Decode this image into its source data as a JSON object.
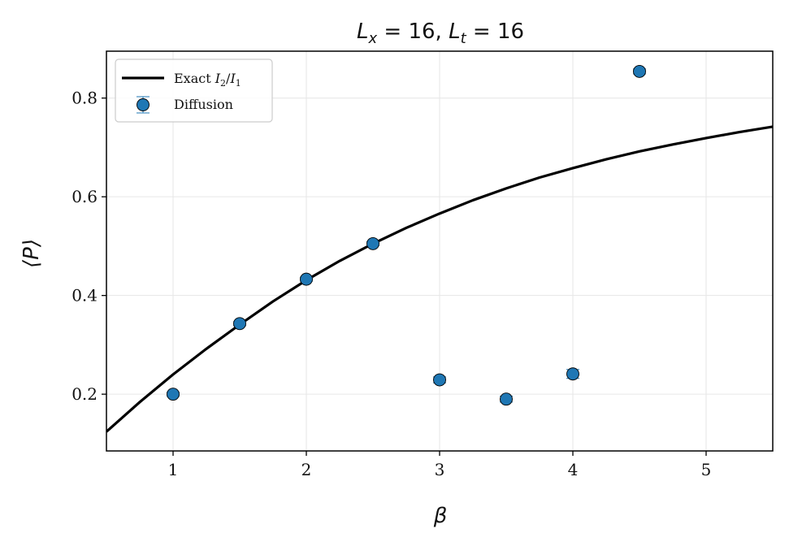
{
  "chart_data": {
    "type": "scatter",
    "title": "L_x = 16,  L_t = 16",
    "title_parts": {
      "lx_sym": "L",
      "lx_sub": "x",
      "lx_val": " = 16,  ",
      "lt_sym": "L",
      "lt_sub": "t",
      "lt_val": " = 16"
    },
    "xlabel": "β",
    "ylabel": "⟨P⟩",
    "xlim": [
      0.5,
      5.5
    ],
    "ylim": [
      0.085,
      0.895
    ],
    "xticks": [
      1,
      2,
      3,
      4,
      5
    ],
    "yticks": [
      0.2,
      0.4,
      0.6,
      0.8
    ],
    "xtick_labels": [
      "1",
      "2",
      "3",
      "4",
      "5"
    ],
    "ytick_labels": [
      "0.2",
      "0.4",
      "0.6",
      "0.8"
    ],
    "grid": true,
    "legend_position": "top-left",
    "legend": {
      "exact_label": "Exact I₂/I₁",
      "exact_parts": {
        "prefix": "Exact ",
        "i2": "I",
        "i2_sub": "2",
        "slash": "/",
        "i1": "I",
        "i1_sub": "1"
      },
      "diffusion_label": "Diffusion"
    },
    "series": [
      {
        "name": "Exact I₂/I₁",
        "kind": "line",
        "color": "#000000",
        "x": [
          0.5,
          0.75,
          1.0,
          1.25,
          1.5,
          1.75,
          2.0,
          2.25,
          2.5,
          2.75,
          3.0,
          3.25,
          3.5,
          3.75,
          4.0,
          4.25,
          4.5,
          4.75,
          5.0,
          5.25,
          5.5
        ],
        "y": [
          0.124,
          0.184,
          0.24,
          0.292,
          0.341,
          0.388,
          0.431,
          0.47,
          0.505,
          0.537,
          0.566,
          0.593,
          0.617,
          0.639,
          0.658,
          0.676,
          0.692,
          0.706,
          0.719,
          0.731,
          0.742
        ]
      },
      {
        "name": "Diffusion",
        "kind": "errorbar",
        "color": "#1f77b4",
        "x": [
          1.0,
          1.5,
          2.0,
          2.5,
          3.0,
          3.5,
          4.0,
          4.5
        ],
        "y": [
          0.2,
          0.343,
          0.433,
          0.505,
          0.229,
          0.19,
          0.241,
          0.854
        ],
        "yerr": [
          0.004,
          0.004,
          0.004,
          0.004,
          0.006,
          0.006,
          0.009,
          0.005
        ]
      }
    ]
  },
  "colors": {
    "line": "#000000",
    "marker": "#1f77b4",
    "marker_edge": "#000000",
    "grid": "#e6e6e6",
    "axes": "#000000"
  }
}
